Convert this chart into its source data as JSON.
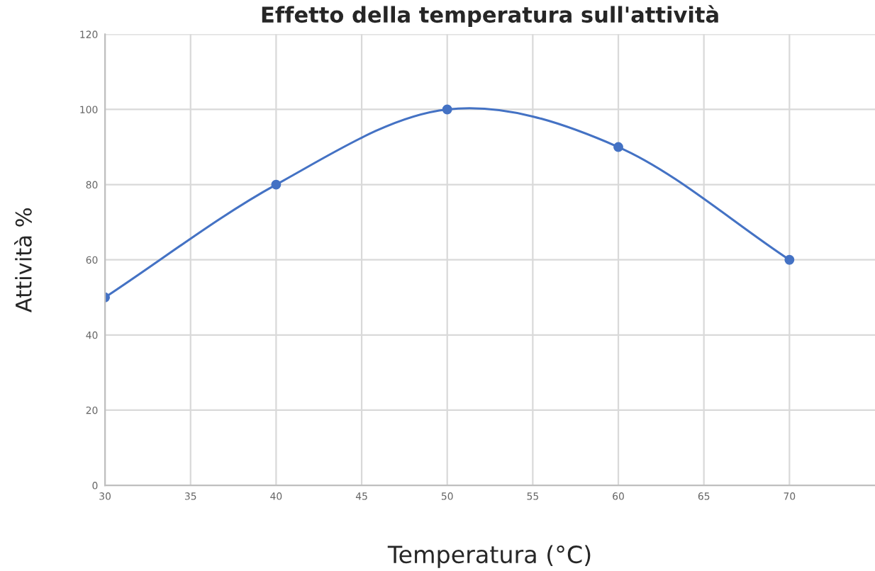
{
  "chart_data": {
    "type": "line",
    "title": "Effetto della temperatura sull'attività",
    "xlabel": "Temperatura (°C)",
    "ylabel": "Attività %",
    "x": [
      30,
      40,
      50,
      60,
      70
    ],
    "series": [
      {
        "color": "#4472c4",
        "values": [
          50,
          80,
          100,
          90,
          60
        ]
      }
    ],
    "xlim": [
      30,
      75
    ],
    "xticks": [
      30,
      35,
      40,
      45,
      50,
      55,
      60,
      65,
      70
    ],
    "ylim": [
      0,
      120
    ],
    "yticks": [
      0,
      20,
      40,
      60,
      80,
      100,
      120
    ],
    "grid": true,
    "marker": "circle",
    "line_style": "solid"
  }
}
